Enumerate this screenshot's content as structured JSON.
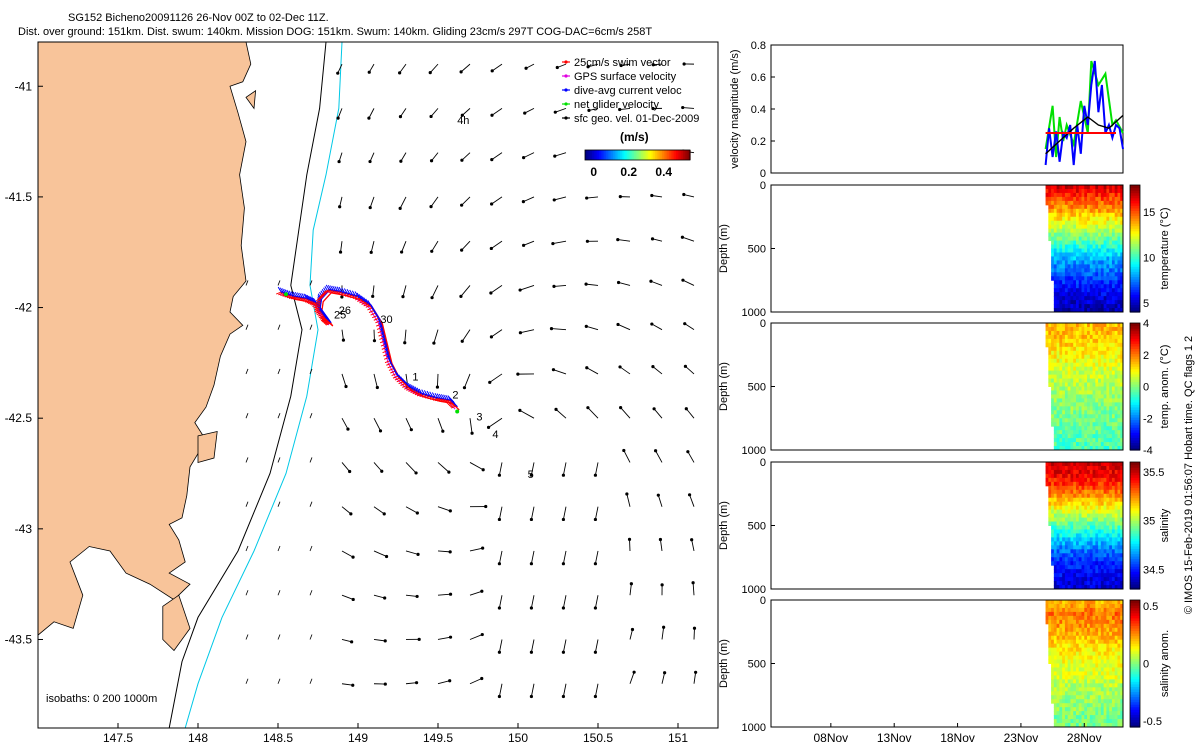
{
  "header": {
    "line1": "SG152 Bicheno20091126 26-Nov 00Z to 02-Dec 11Z.",
    "line2": "Dist. over ground: 151km. Dist. swum: 140km. Mission DOG: 151km. Swum: 140km. Gliding 23cm/s 297T COG-DAC=6cm/s 258T"
  },
  "side_label": "© IMOS 15-Feb-2019 01:56:07 Hobart time. QC flags 1 2",
  "colors": {
    "land": "#f8c49a",
    "isobath_200": "#000000",
    "isobath_1000": "#00c8e6",
    "swim": "#ff0000",
    "gps": "#e000e0",
    "dac": "#0000ff",
    "net": "#00e000",
    "geo": "#000000"
  },
  "chart_data": [
    {
      "id": "map",
      "type": "scatter",
      "title": "",
      "xlabel": "",
      "ylabel": "",
      "xlim": [
        147.0,
        151.25
      ],
      "ylim": [
        -43.9,
        -40.8
      ],
      "xticks": [
        "147.5",
        "148",
        "148.5",
        "149",
        "149.5",
        "150",
        "150.5",
        "151"
      ],
      "xtick_values": [
        147.5,
        148,
        148.5,
        149,
        149.5,
        150,
        150.5,
        151
      ],
      "yticks": [
        "-41",
        "-41.5",
        "-42",
        "-42.5",
        "-43",
        "-43.5"
      ],
      "ytick_values": [
        -41,
        -41.5,
        -42,
        -42.5,
        -43,
        -43.5
      ],
      "legend": {
        "position": "top-right",
        "items": [
          {
            "label": "25cm/s swim vector",
            "color": "#ff0000"
          },
          {
            "label": "GPS surface velocity",
            "color": "#e000e0"
          },
          {
            "label": "dive-avg current veloc",
            "color": "#0000ff"
          },
          {
            "label": "net glider velocity",
            "color": "#00e000"
          },
          {
            "label": "sfc geo. vel. 01-Dec-2009",
            "color": "#000000"
          }
        ]
      },
      "colorbar": {
        "unit": "(m/s)",
        "ticks": [
          "0",
          "0.2",
          "0.4"
        ],
        "tick_values": [
          0,
          0.2,
          0.4
        ],
        "range": [
          -0.05,
          0.55
        ]
      },
      "isobaths_label": "isobaths: 0   200  1000m",
      "track": {
        "lon": [
          148.52,
          148.6,
          148.68,
          148.74,
          148.78,
          148.83,
          148.8,
          148.76,
          148.77,
          148.82,
          148.9,
          149.0,
          149.08,
          149.14,
          149.17,
          149.2,
          149.25,
          149.32,
          149.4,
          149.5,
          149.58,
          149.62
        ],
        "lat": [
          -41.93,
          -41.95,
          -41.96,
          -41.98,
          -42.02,
          -42.07,
          -42.05,
          -42.01,
          -41.96,
          -41.92,
          -41.93,
          -41.95,
          -41.99,
          -42.06,
          -42.15,
          -42.24,
          -42.31,
          -42.36,
          -42.39,
          -42.41,
          -42.42,
          -42.45
        ]
      },
      "labels": [
        {
          "text": "4h",
          "lon": 149.62,
          "lat": -41.17
        },
        {
          "text": "26",
          "lon": 148.88,
          "lat": -42.03
        },
        {
          "text": "25",
          "lon": 148.85,
          "lat": -42.05
        },
        {
          "text": "30",
          "lon": 149.14,
          "lat": -42.07
        },
        {
          "text": "1",
          "lon": 149.34,
          "lat": -42.33
        },
        {
          "text": "2",
          "lon": 149.59,
          "lat": -42.41
        },
        {
          "text": "3",
          "lon": 149.74,
          "lat": -42.51
        },
        {
          "text": "4",
          "lon": 149.84,
          "lat": -42.59
        },
        {
          "text": "5",
          "lon": 150.06,
          "lat": -42.77
        }
      ]
    },
    {
      "id": "velocity",
      "type": "line",
      "title": "",
      "xlabel": "",
      "ylabel": "velocity magnitude (m/s)",
      "xlim": [
        0,
        1
      ],
      "ylim": [
        0,
        0.8
      ],
      "yticks": [
        "0",
        "0.2",
        "0.4",
        "0.6",
        "0.8"
      ],
      "ytick_values": [
        0,
        0.2,
        0.4,
        0.6,
        0.8
      ],
      "series": [
        {
          "name": "net glider velocity",
          "color": "#00e000",
          "x": [
            0.78,
            0.8,
            0.81,
            0.82,
            0.83,
            0.84,
            0.86,
            0.88,
            0.9,
            0.91,
            0.93,
            0.95,
            0.97,
            0.98,
            1.0
          ],
          "y": [
            0.15,
            0.42,
            0.1,
            0.35,
            0.2,
            0.3,
            0.18,
            0.45,
            0.25,
            0.7,
            0.55,
            0.62,
            0.3,
            0.33,
            0.25
          ]
        },
        {
          "name": "dive-avg current veloc",
          "color": "#0000ff",
          "x": [
            0.78,
            0.79,
            0.8,
            0.81,
            0.82,
            0.83,
            0.84,
            0.85,
            0.86,
            0.87,
            0.88,
            0.89,
            0.9,
            0.91,
            0.92,
            0.93,
            0.94,
            0.95,
            0.96,
            0.97,
            0.98,
            0.99,
            1.0
          ],
          "y": [
            0.05,
            0.28,
            0.1,
            0.26,
            0.07,
            0.25,
            0.22,
            0.3,
            0.05,
            0.3,
            0.12,
            0.42,
            0.3,
            0.55,
            0.7,
            0.38,
            0.55,
            0.25,
            0.3,
            0.22,
            0.3,
            0.28,
            0.15
          ]
        },
        {
          "name": "sfc geo. vel.",
          "color": "#000000",
          "x": [
            0.78,
            0.82,
            0.86,
            0.9,
            0.93,
            0.96,
            1.0
          ],
          "y": [
            0.12,
            0.2,
            0.28,
            0.35,
            0.3,
            0.28,
            0.36
          ]
        },
        {
          "name": "swim vector",
          "color": "#ff0000",
          "x": [
            0.78,
            0.98
          ],
          "y": [
            0.25,
            0.25
          ]
        }
      ]
    },
    {
      "id": "temperature",
      "type": "heatmap",
      "xlabel": "",
      "ylabel": "Depth (m)",
      "ylim": [
        1000,
        0
      ],
      "yticks": [
        "0",
        "500",
        "1000"
      ],
      "ytick_values": [
        0,
        500,
        1000
      ],
      "colorbar": {
        "label": "temperature (°C)",
        "ticks": [
          "5",
          "10",
          "15"
        ],
        "tick_values": [
          5,
          10,
          15
        ],
        "range": [
          4,
          18
        ]
      },
      "data_x_range": [
        0.78,
        1.0
      ],
      "data_depth_max": 1000,
      "profile": {
        "depth": [
          0,
          100,
          200,
          300,
          400,
          500,
          600,
          700,
          800,
          900,
          1000
        ],
        "value": [
          17,
          15.5,
          14,
          12.5,
          11,
          9.5,
          8,
          7,
          6,
          5.2,
          4.5
        ]
      }
    },
    {
      "id": "temp_anom",
      "type": "heatmap",
      "xlabel": "",
      "ylabel": "Depth (m)",
      "ylim": [
        1000,
        0
      ],
      "yticks": [
        "0",
        "500",
        "1000"
      ],
      "ytick_values": [
        0,
        500,
        1000
      ],
      "colorbar": {
        "label": "temp. anom. (°C)",
        "ticks": [
          "-4",
          "-2",
          "0",
          "2",
          "4"
        ],
        "tick_values": [
          -4,
          -2,
          0,
          2,
          4
        ],
        "range": [
          -4,
          4
        ]
      },
      "data_x_range": [
        0.78,
        1.0
      ],
      "data_depth_max": 1000,
      "profile": {
        "depth": [
          0,
          100,
          200,
          300,
          400,
          500,
          600,
          700,
          800,
          900,
          1000
        ],
        "value": [
          1.5,
          1.5,
          1.2,
          0.9,
          0.6,
          0.4,
          0.2,
          0,
          -0.2,
          -0.3,
          -0.5
        ]
      }
    },
    {
      "id": "salinity",
      "type": "heatmap",
      "xlabel": "",
      "ylabel": "Depth (m)",
      "ylim": [
        1000,
        0
      ],
      "yticks": [
        "0",
        "500",
        "1000"
      ],
      "ytick_values": [
        0,
        500,
        1000
      ],
      "colorbar": {
        "label": "salinity",
        "ticks": [
          "34.5",
          "35",
          "35.5"
        ],
        "tick_values": [
          34.5,
          35,
          35.5
        ],
        "range": [
          34.3,
          35.6
        ]
      },
      "data_x_range": [
        0.78,
        1.0
      ],
      "data_depth_max": 1000,
      "profile": {
        "depth": [
          0,
          100,
          200,
          300,
          400,
          500,
          600,
          700,
          800,
          900,
          1000
        ],
        "value": [
          35.5,
          35.45,
          35.35,
          35.2,
          35.05,
          34.9,
          34.75,
          34.6,
          34.5,
          34.45,
          34.4
        ]
      }
    },
    {
      "id": "sal_anom",
      "type": "heatmap",
      "xlabel": "",
      "ylabel": "Depth (m)",
      "ylim": [
        1000,
        0
      ],
      "yticks": [
        "0",
        "500",
        "1000"
      ],
      "ytick_values": [
        0,
        500,
        1000
      ],
      "xticks": [
        "08Nov",
        "13Nov",
        "18Nov",
        "23Nov",
        "28Nov"
      ],
      "xtick_values": [
        0.17,
        0.35,
        0.53,
        0.71,
        0.89
      ],
      "colorbar": {
        "label": "salinity anom.",
        "ticks": [
          "-0.5",
          "0",
          "0.5"
        ],
        "tick_values": [
          -0.5,
          0,
          0.5
        ],
        "range": [
          -0.55,
          0.55
        ]
      },
      "data_x_range": [
        0.78,
        1.0
      ],
      "data_depth_max": 1000,
      "profile": {
        "depth": [
          0,
          100,
          200,
          300,
          400,
          500,
          600,
          700,
          800,
          900,
          1000
        ],
        "value": [
          0.2,
          0.3,
          0.25,
          0.2,
          0.15,
          0.12,
          0.1,
          0.05,
          0.02,
          0,
          -0.02
        ]
      }
    }
  ]
}
